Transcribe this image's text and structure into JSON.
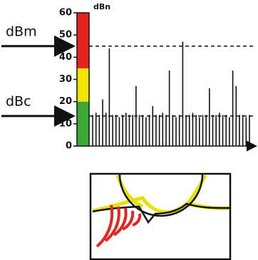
{
  "chart_data": {
    "type": "spike",
    "unit_label": "dBn",
    "ylim": [
      0,
      60
    ],
    "yticks": [
      0,
      10,
      20,
      30,
      40,
      50,
      60
    ],
    "color": "#111111",
    "values": [
      14,
      15,
      14,
      21,
      15,
      44,
      14,
      14,
      13,
      14,
      15,
      14,
      14,
      27,
      14,
      14,
      13,
      14,
      18,
      14,
      14,
      15,
      14,
      34,
      14,
      13,
      14,
      47,
      14,
      14,
      15,
      14,
      13,
      14,
      14,
      26,
      14,
      14,
      15,
      14,
      14,
      13,
      34,
      27,
      14,
      14,
      13,
      14
    ],
    "scale_bands": [
      {
        "from": 0,
        "to": 20,
        "color": "#3aaa35"
      },
      {
        "from": 20,
        "to": 35,
        "color": "#f3e500"
      },
      {
        "from": 35,
        "to": 60,
        "color": "#e52421"
      }
    ],
    "reference_lines": [
      {
        "label": "dBm",
        "value": 45
      },
      {
        "label": "dBc",
        "value": 13.5
      }
    ]
  }
}
